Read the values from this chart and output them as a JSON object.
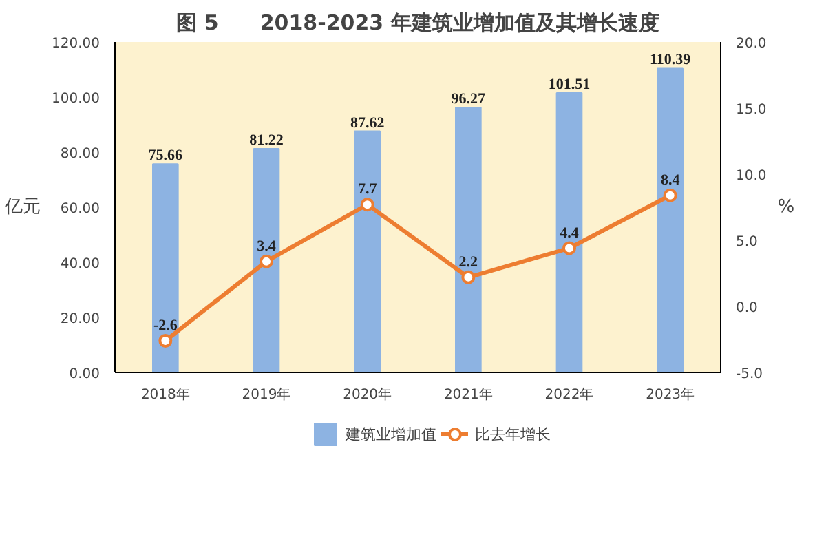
{
  "chart_data": {
    "type": "bar",
    "title": "图 5　　2018-2023 年建筑业增加值及其增长速度",
    "ylabel": "亿元",
    "y2label": "%",
    "categories": [
      "2018年",
      "2019年",
      "2020年",
      "2021年",
      "2022年",
      "2023年"
    ],
    "series": [
      {
        "name": "建筑业增加值",
        "color": "#8db3e2",
        "values": [
          75.66,
          81.22,
          87.62,
          96.27,
          101.51,
          110.39
        ]
      },
      {
        "name": "比去年增长",
        "type": "line",
        "axis": "y2",
        "color": "#ed7d31",
        "marker": "circle",
        "values": [
          -2.6,
          3.4,
          7.7,
          2.2,
          4.4,
          8.4
        ]
      }
    ],
    "ylim": [
      0,
      120
    ],
    "yticks": [
      {
        "value": 0,
        "label": "0.00"
      },
      {
        "value": 20,
        "label": "20.00"
      },
      {
        "value": 40,
        "label": "40.00"
      },
      {
        "value": 60,
        "label": "60.00"
      },
      {
        "value": 80,
        "label": "80.00"
      },
      {
        "value": 100,
        "label": "100.00"
      },
      {
        "value": 120,
        "label": "120.00"
      }
    ],
    "y2lim": [
      -5,
      20
    ],
    "y2ticks": [
      {
        "value": -5,
        "label": "-5.0"
      },
      {
        "value": 0,
        "label": "0.0"
      },
      {
        "value": 5,
        "label": "5.0"
      },
      {
        "value": 10,
        "label": "10.0"
      },
      {
        "value": 15,
        "label": "15.0"
      },
      {
        "value": 20,
        "label": "20.0"
      }
    ],
    "data_labels": true,
    "legend": "bottom",
    "grid": false
  }
}
